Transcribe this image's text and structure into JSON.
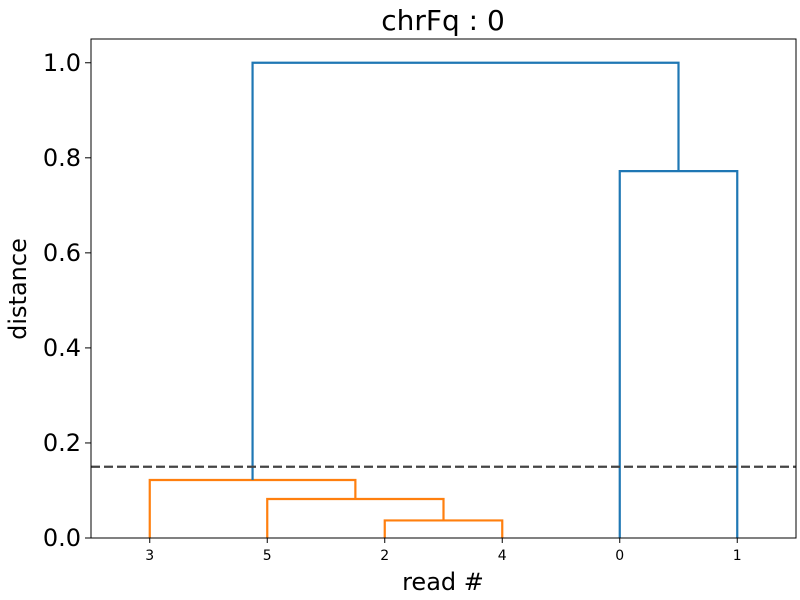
{
  "chart_data": {
    "type": "dendrogram",
    "title": "chrFq : 0",
    "xlabel": "read #",
    "ylabel": "distance",
    "ylim": [
      0.0,
      1.05
    ],
    "yticks": [
      "0.0",
      "0.2",
      "0.4",
      "0.6",
      "0.8",
      "1.0"
    ],
    "leaves": [
      "3",
      "5",
      "2",
      "4",
      "0",
      "1"
    ],
    "threshold": 0.15,
    "grid": false,
    "colors": {
      "cluster": "#ff7f0e",
      "above_threshold": "#1f77b4",
      "threshold_line": "#444444",
      "axes": "#000000"
    },
    "merges": [
      {
        "left": "leaf:2",
        "right": "leaf:4",
        "height": 0.037,
        "color": "cluster"
      },
      {
        "left": "leaf:5",
        "right": "merge:0",
        "height": 0.082,
        "color": "cluster"
      },
      {
        "left": "leaf:3",
        "right": "merge:1",
        "height": 0.122,
        "color": "cluster"
      },
      {
        "left": "leaf:0",
        "right": "leaf:1",
        "height": 0.772,
        "color": "above_threshold"
      },
      {
        "left": "merge:2",
        "right": "merge:3",
        "height": 1.0,
        "color": "above_threshold"
      }
    ]
  }
}
